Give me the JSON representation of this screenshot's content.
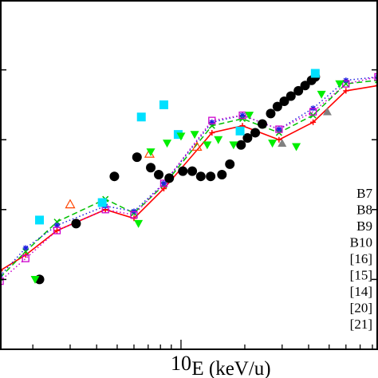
{
  "chart_data": {
    "type": "line",
    "xlabel": "E (keV/u)",
    "x_scale": "log",
    "xlim": [
      1.4,
      85
    ],
    "x_tick_labels": [
      {
        "value": 10,
        "label": "10"
      }
    ],
    "ylabel": "",
    "ylim": [
      0,
      10
    ],
    "y_major_ticks": [
      2,
      4,
      6,
      8
    ],
    "series": [
      {
        "name": "B7",
        "style": "line",
        "color": "#ff0000",
        "marker": "plus",
        "x": [
          1.4,
          1.85,
          2.6,
          4.4,
          6.0,
          8.3,
          14.0,
          19.5,
          29.0,
          42.0,
          60.0,
          85.0
        ],
        "y": [
          2.25,
          2.7,
          3.4,
          4.0,
          3.75,
          4.6,
          6.2,
          6.4,
          6.0,
          6.5,
          7.4,
          7.55
        ]
      },
      {
        "name": "B8",
        "style": "dashed",
        "color": "#00c000",
        "marker": "x",
        "x": [
          1.4,
          1.85,
          2.6,
          4.4,
          6.0,
          8.3,
          14.0,
          19.5,
          29.0,
          42.0,
          60.0,
          85.0
        ],
        "y": [
          2.05,
          2.8,
          3.65,
          4.3,
          3.9,
          4.7,
          6.4,
          6.6,
          6.2,
          6.7,
          7.6,
          7.7
        ]
      },
      {
        "name": "B9",
        "style": "dotted",
        "color": "#2020e0",
        "marker": "star",
        "x": [
          1.4,
          1.85,
          2.6,
          4.4,
          6.0,
          8.3,
          14.0,
          19.5,
          29.0,
          42.0,
          60.0,
          85.0
        ],
        "y": [
          2.1,
          2.9,
          3.55,
          4.1,
          3.95,
          4.75,
          6.5,
          6.7,
          6.3,
          6.9,
          7.7,
          7.8
        ]
      },
      {
        "name": "B10",
        "style": "dotted",
        "color": "#cc00cc",
        "marker": "square-open",
        "x": [
          1.4,
          1.85,
          2.6,
          4.4,
          6.0,
          8.3,
          14.0,
          19.5,
          29.0,
          42.0,
          60.0,
          85.0
        ],
        "y": [
          1.95,
          2.6,
          3.4,
          4.0,
          3.85,
          4.75,
          6.55,
          6.7,
          6.3,
          6.8,
          7.6,
          7.8
        ]
      },
      {
        "name": "[16]",
        "style": "markers",
        "color": "#000000",
        "marker": "circle-filled",
        "x": [
          2.15,
          3.2,
          4.85,
          6.2,
          7.2,
          7.85,
          8.8,
          10.2,
          11.3,
          12.4,
          13.8,
          15.6,
          17.0,
          19.2,
          20.6,
          22.4,
          24.2,
          26.5,
          28.5,
          30.7,
          33.0,
          35.8,
          38.5,
          41.3,
          43.0
        ],
        "y": [
          2.0,
          3.6,
          4.95,
          5.5,
          5.2,
          5.0,
          4.9,
          5.1,
          5.1,
          4.95,
          4.95,
          5.0,
          5.3,
          5.85,
          6.05,
          6.2,
          6.45,
          6.75,
          6.95,
          7.1,
          7.25,
          7.4,
          7.55,
          7.7,
          7.8
        ]
      },
      {
        "name": "[15]",
        "style": "markers",
        "color": "#ff4400",
        "marker": "triangle-open",
        "x": [
          3.0,
          7.1,
          11.9
        ],
        "y": [
          4.15,
          5.6,
          5.8
        ]
      },
      {
        "name": "[14]",
        "style": "markers",
        "color": "#808080",
        "marker": "triangle-filled",
        "x": [
          30.0,
          49.0
        ],
        "y": [
          5.9,
          6.8
        ]
      },
      {
        "name": "[20]",
        "style": "markers",
        "color": "#00e0ff",
        "marker": "square-filled",
        "x": [
          2.15,
          4.25,
          6.5,
          8.3,
          9.7,
          19.0,
          43.0
        ],
        "y": [
          3.7,
          4.2,
          6.65,
          7.0,
          6.15,
          6.25,
          7.9
        ]
      },
      {
        "name": "[21]",
        "style": "markers",
        "color": "#00ee00",
        "marker": "triangle-down-filled",
        "x": [
          2.05,
          6.3,
          7.2,
          8.6,
          10.0,
          11.6,
          13.3,
          15.0,
          17.7,
          21.0,
          27.0,
          35.0,
          46.0,
          56.0
        ],
        "y": [
          2.0,
          3.6,
          5.65,
          5.9,
          6.1,
          6.15,
          5.85,
          6.0,
          5.85,
          6.7,
          5.9,
          5.8,
          7.3,
          7.6
        ]
      }
    ]
  }
}
